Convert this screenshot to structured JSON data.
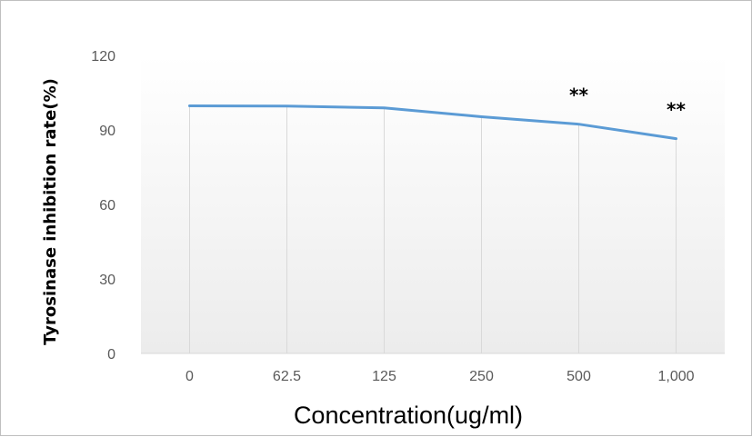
{
  "chart_data": {
    "type": "line",
    "categories": [
      "0",
      "62.5",
      "125",
      "250",
      "500",
      "1,000"
    ],
    "series": [
      {
        "values": [
          99.7,
          99.6,
          98.9,
          95.3,
          92.3,
          86.5
        ]
      }
    ],
    "annotations": [
      "",
      "",
      "",
      "",
      "**",
      "**"
    ],
    "title": "",
    "xlabel": "Concentration(ug/ml)",
    "ylabel": "Tyrosinase inhibition rate(%)",
    "ylim": [
      0,
      120
    ],
    "yticks": [
      "0",
      "30",
      "60",
      "90",
      "120"
    ],
    "grid": "vertical",
    "legend": "none",
    "colors": {
      "line": "#5b9bd5",
      "grid": "#d9d9d9",
      "plot_bg_top": "#ffffff",
      "plot_bg_bottom": "#ececec"
    }
  }
}
